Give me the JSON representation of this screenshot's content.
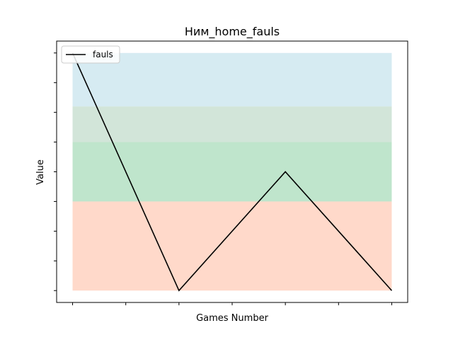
{
  "chart_data": {
    "type": "line",
    "title": "Ним_home_fauls",
    "xlabel": "Games Number",
    "ylabel": "Value",
    "x": [
      1,
      2,
      3,
      4
    ],
    "series": [
      {
        "name": "fauls",
        "values": [
          9,
          1,
          5,
          1
        ],
        "color": "#000000"
      }
    ],
    "xlim": [
      0.85,
      4.15
    ],
    "ylim": [
      0.6,
      9.4
    ],
    "x_ticks": [
      1,
      1.5,
      2,
      2.5,
      3,
      3.5,
      4
    ],
    "y_ticks": [
      1,
      2,
      3,
      4,
      5,
      6,
      7,
      8,
      9
    ],
    "tick_labels_visible": false,
    "bands": [
      {
        "from": 1,
        "to": 4,
        "color": "#ffa07a",
        "opacity": 0.4
      },
      {
        "from": 4,
        "to": 6,
        "color": "#5fbf7f",
        "opacity": 0.4
      },
      {
        "from": 6,
        "to": 7.2,
        "color": "#8fbf9f",
        "opacity": 0.4
      },
      {
        "from": 7.2,
        "to": 9,
        "color": "#add8e6",
        "opacity": 0.5
      }
    ],
    "grid": false,
    "legend_position": "upper-left"
  }
}
